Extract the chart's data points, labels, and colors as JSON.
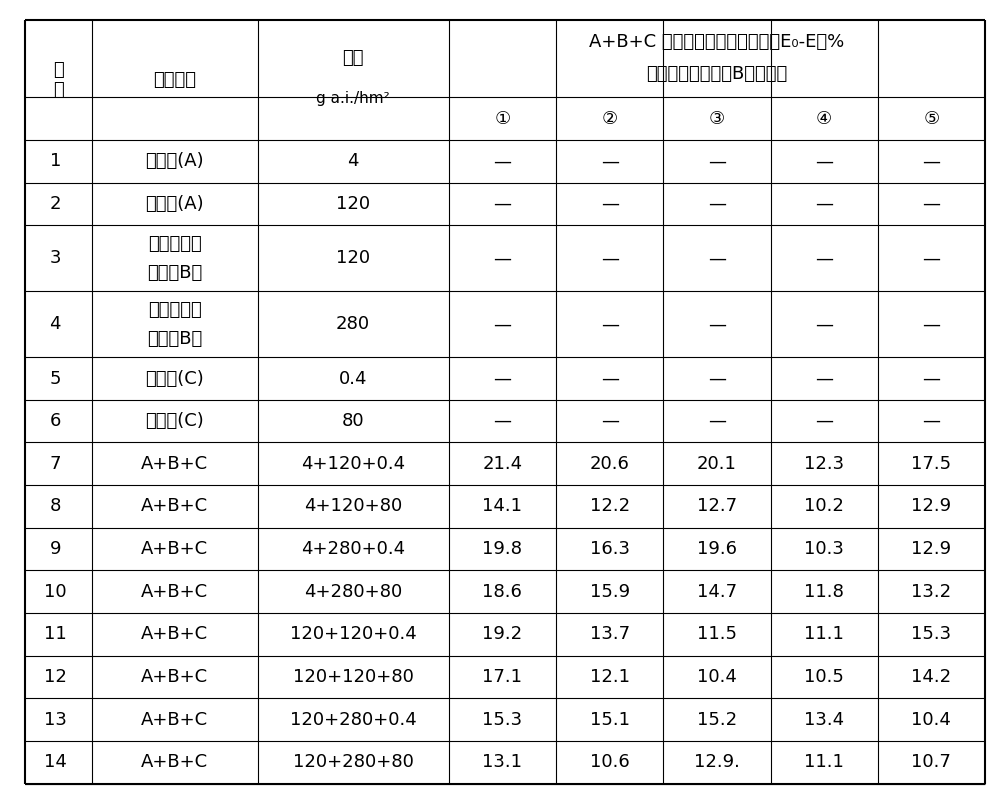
{
  "title_line1": "A+B+C 混剂处理的存活率差值（E₀-E）%",
  "title_line2": "有机磷类除草剂（B）的种类",
  "rows": [
    [
      "1",
      "草铵灵(A)",
      "4",
      "—",
      "—",
      "—",
      "—",
      "—"
    ],
    [
      "2",
      "草铵灵(A)",
      "120",
      "—",
      "—",
      "—",
      "—",
      "—"
    ],
    [
      "3",
      "有机磷类除\n草剂（B）",
      "120",
      "—",
      "—",
      "—",
      "—",
      "—"
    ],
    [
      "4",
      "有机磷类除\n草剂（B）",
      "280",
      "—",
      "—",
      "—",
      "—",
      "—"
    ],
    [
      "5",
      "咔草酮(C)",
      "0.4",
      "—",
      "—",
      "—",
      "—",
      "—"
    ],
    [
      "6",
      "咔草酮(C)",
      "80",
      "—",
      "—",
      "—",
      "—",
      "—"
    ],
    [
      "7",
      "A+B+C",
      "4+120+0.4",
      "21.4",
      "20.6",
      "20.1",
      "12.3",
      "17.5"
    ],
    [
      "8",
      "A+B+C",
      "4+120+80",
      "14.1",
      "12.2",
      "12.7",
      "10.2",
      "12.9"
    ],
    [
      "9",
      "A+B+C",
      "4+280+0.4",
      "19.8",
      "16.3",
      "19.6",
      "10.3",
      "12.9"
    ],
    [
      "10",
      "A+B+C",
      "4+280+80",
      "18.6",
      "15.9",
      "14.7",
      "11.8",
      "13.2"
    ],
    [
      "11",
      "A+B+C",
      "120+120+0.4",
      "19.2",
      "13.7",
      "11.5",
      "11.1",
      "15.3"
    ],
    [
      "12",
      "A+B+C",
      "120+120+80",
      "17.1",
      "12.1",
      "10.4",
      "10.5",
      "14.2"
    ],
    [
      "13",
      "A+B+C",
      "120+280+0.4",
      "15.3",
      "15.1",
      "15.2",
      "13.4",
      "10.4"
    ],
    [
      "14",
      "A+B+C",
      "120+280+80",
      "13.1",
      "10.6",
      "12.9.",
      "11.1",
      "10.7"
    ]
  ],
  "fig_width": 10.0,
  "fig_height": 7.98,
  "background_color": "#ffffff",
  "text_color": "#000000"
}
